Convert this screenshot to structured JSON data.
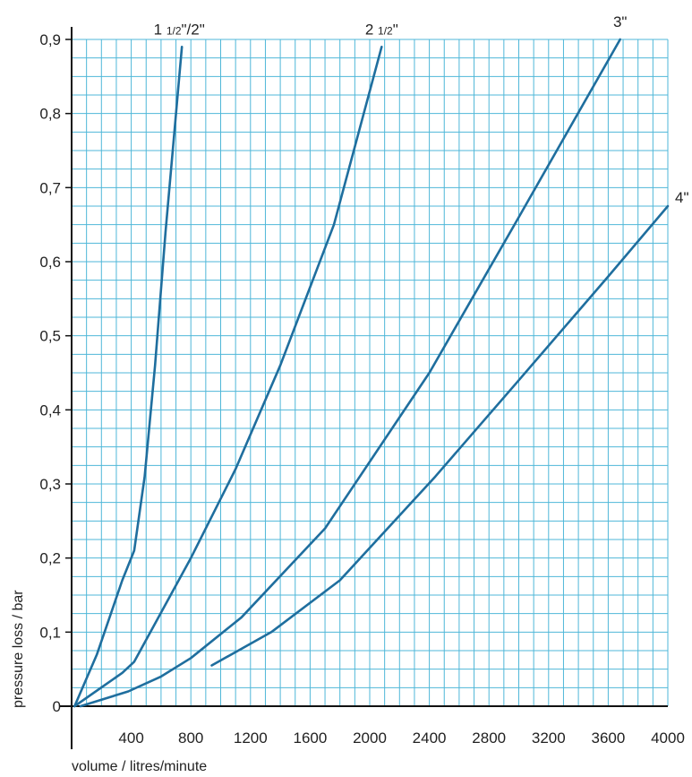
{
  "chart_data": {
    "type": "line",
    "title": "",
    "xlabel": "volume / litres/minute",
    "ylabel": "pressure loss / bar",
    "xlim": [
      0,
      4000
    ],
    "ylim": [
      0,
      0.9
    ],
    "grid": true,
    "x_ticks": [
      400,
      800,
      1200,
      1600,
      2000,
      2400,
      2800,
      3200,
      3600,
      4000
    ],
    "x_tick_labels": [
      "400",
      "800",
      "1200",
      "1600",
      "2000",
      "2400",
      "2800",
      "3200",
      "3600",
      "4000"
    ],
    "y_ticks": [
      0,
      0.1,
      0.2,
      0.3,
      0.4,
      0.5,
      0.6,
      0.7,
      0.8,
      0.9
    ],
    "y_tick_labels": [
      "0",
      "0,1",
      "0,2",
      "0,3",
      "0,4",
      "0,5",
      "0,6",
      "0,7",
      "0,8",
      "0,9"
    ],
    "line_color": "#1f6e9e",
    "grid_color": "#4fb7d8",
    "series": [
      {
        "name": "1 1/2\"/2\"",
        "label_main": "1 ",
        "label_frac": "1/2",
        "label_rest": "\"/2\"",
        "points": [
          [
            20,
            0
          ],
          [
            170,
            0.07
          ],
          [
            340,
            0.17
          ],
          [
            420,
            0.21
          ],
          [
            490,
            0.31
          ],
          [
            560,
            0.46
          ],
          [
            630,
            0.64
          ],
          [
            740,
            0.89
          ]
        ]
      },
      {
        "name": "2 1/2\"",
        "label_main": "2 ",
        "label_frac": "1/2",
        "label_rest": "\"",
        "points": [
          [
            20,
            0
          ],
          [
            340,
            0.045
          ],
          [
            420,
            0.06
          ],
          [
            800,
            0.2
          ],
          [
            1100,
            0.32
          ],
          [
            1400,
            0.46
          ],
          [
            1760,
            0.65
          ],
          [
            2080,
            0.89
          ]
        ]
      },
      {
        "name": "3\"",
        "label_main": "3\"",
        "label_frac": "",
        "label_rest": "",
        "points": [
          [
            60,
            0
          ],
          [
            380,
            0.02
          ],
          [
            600,
            0.04
          ],
          [
            800,
            0.065
          ],
          [
            1140,
            0.12
          ],
          [
            1700,
            0.24
          ],
          [
            2400,
            0.45
          ],
          [
            3000,
            0.66
          ],
          [
            3680,
            0.9
          ]
        ]
      },
      {
        "name": "4\"",
        "label_main": "4\"",
        "label_frac": "",
        "label_rest": "",
        "points": [
          [
            940,
            0.055
          ],
          [
            1340,
            0.1
          ],
          [
            1800,
            0.17
          ],
          [
            2440,
            0.31
          ],
          [
            3000,
            0.44
          ],
          [
            3600,
            0.58
          ],
          [
            4000,
            0.675
          ]
        ]
      }
    ]
  }
}
